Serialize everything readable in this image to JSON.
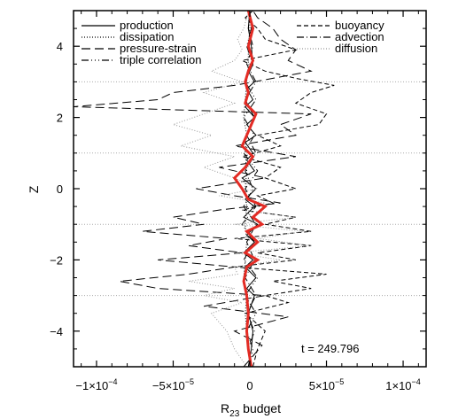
{
  "chart_data": {
    "type": "line",
    "xlabel_main": "R",
    "xlabel_sub": "23",
    "xlabel_rest": " budget",
    "ylabel": "Z",
    "xlim": [
      -0.000115,
      0.000115
    ],
    "ylim": [
      -5,
      5
    ],
    "x_ticks": [
      {
        "value": -0.0001,
        "mant": "−1×10",
        "exp": "−4"
      },
      {
        "value": -5e-05,
        "mant": "−5×10",
        "exp": "−5"
      },
      {
        "value": 0,
        "mant": "0",
        "exp": ""
      },
      {
        "value": 5e-05,
        "mant": "5×10",
        "exp": "−5"
      },
      {
        "value": 0.0001,
        "mant": "1×10",
        "exp": "−4"
      }
    ],
    "y_ticks": [
      {
        "value": -4,
        "label": "−4"
      },
      {
        "value": -2,
        "label": "−2"
      },
      {
        "value": 0,
        "label": "0"
      },
      {
        "value": 2,
        "label": "2"
      },
      {
        "value": 4,
        "label": "4"
      }
    ],
    "annotation": "t = 249.796",
    "grid": "dotted horizontal lines",
    "legend_placement": "top",
    "series": [
      {
        "name": "production",
        "dash": "",
        "color": "#000000",
        "width": 1.0,
        "z": [
          -5,
          -4.5,
          -4,
          -3.5,
          -3,
          -2.8,
          -2.5,
          -2.2,
          -2,
          -1.8,
          -1.5,
          -1.3,
          -1,
          -0.8,
          -0.5,
          -0.3,
          0,
          0.3,
          0.5,
          0.8,
          1,
          1.3,
          1.5,
          1.8,
          2,
          2.3,
          2.5,
          2.8,
          3,
          3.3,
          3.5,
          4,
          4.5,
          5
        ],
        "x": [
          -1e-06,
          1e-06,
          2e-06,
          -1e-06,
          3e-06,
          -2e-06,
          4e-06,
          -3e-06,
          2e-06,
          -4e-06,
          3e-06,
          -2e-06,
          5e-06,
          -4e-06,
          3e-06,
          -3e-06,
          4e-06,
          -5e-06,
          3e-06,
          -2e-06,
          2e-06,
          -3e-06,
          4e-06,
          -2e-06,
          3e-06,
          -3e-06,
          2e-06,
          -2e-06,
          3e-06,
          -1e-06,
          2e-06,
          1e-06,
          -1e-06,
          0
        ]
      },
      {
        "name": "dissipation",
        "dash": "1,2",
        "color": "#000000",
        "width": 1.0,
        "z": [
          -5,
          -4.5,
          -4,
          -3.5,
          -3,
          -2.5,
          -2,
          -1.5,
          -1,
          -0.5,
          0,
          0.5,
          1,
          1.5,
          2,
          2.5,
          3,
          3.5,
          4,
          4.5,
          5
        ],
        "x": [
          0,
          -1e-06,
          -2e-06,
          -3e-06,
          -2e-06,
          -4e-06,
          -3e-06,
          -2e-06,
          -3e-06,
          -2e-06,
          -3e-06,
          -2e-06,
          -3e-06,
          -2e-06,
          -4e-06,
          -3e-06,
          -2e-06,
          -1e-06,
          -1e-06,
          0,
          0
        ]
      },
      {
        "name": "pressure-strain",
        "dash": "10,5",
        "color": "#000000",
        "width": 1.0,
        "z": [
          -5,
          -4.4,
          -4,
          -3.6,
          -3.3,
          -3,
          -2.8,
          -2.6,
          -2.4,
          -2.2,
          -2,
          -1.8,
          -1.6,
          -1.4,
          -1.2,
          -1,
          -0.8,
          -0.6,
          -0.4,
          -0.2,
          0,
          0.3,
          0.6,
          0.9,
          1.2,
          1.5,
          1.8,
          2.1,
          2.3,
          2.5,
          2.7,
          2.9,
          3.1,
          3.3,
          3.6,
          3.9,
          4.2,
          4.5,
          4.8,
          5
        ],
        "x": [
          -4e-06,
          8e-06,
          -1e-05,
          2.5e-05,
          -3e-05,
          1e-05,
          -6e-05,
          -8.5e-05,
          -4e-05,
          -1e-05,
          -6e-05,
          -5e-06,
          -4e-05,
          -1.5e-05,
          -7e-05,
          -3e-05,
          -5e-05,
          -2e-05,
          2e-05,
          -1e-05,
          -3.5e-05,
          1e-05,
          -2e-05,
          3e-05,
          -1e-05,
          3e-05,
          2e-05,
          4e-05,
          -0.000115,
          -6e-05,
          -5e-05,
          -1e-05,
          1.5e-05,
          4e-05,
          2.5e-05,
          3e-05,
          2e-05,
          1.5e-05,
          5e-06,
          2e-06
        ]
      },
      {
        "name": "triple correlation",
        "dash": "8,3,1,3,1,3,1,3",
        "color": "#000000",
        "width": 1.0,
        "z": [
          -5,
          -4.5,
          -4,
          -3.5,
          -3,
          -2.5,
          -2,
          -1.5,
          -1,
          -0.5,
          0,
          0.5,
          1,
          1.5,
          2,
          2.5,
          3,
          3.5,
          4,
          4.5,
          5
        ],
        "x": [
          0,
          2e-06,
          -2e-06,
          4e-06,
          -3e-06,
          5e-06,
          -4e-06,
          3e-06,
          -5e-06,
          4e-06,
          -3e-06,
          5e-06,
          -4e-06,
          3e-06,
          -4e-06,
          4e-06,
          -3e-06,
          2e-06,
          -2e-06,
          1e-06,
          0
        ]
      },
      {
        "name": "buoyancy",
        "dash": "5,3",
        "color": "#000000",
        "width": 1.0,
        "z": [
          -5,
          -4.5,
          -4,
          -3.5,
          -3.2,
          -3,
          -2.8,
          -2.6,
          -2.4,
          -2.2,
          -2,
          -1.8,
          -1.6,
          -1.4,
          -1.2,
          -1,
          -0.8,
          -0.6,
          -0.4,
          -0.2,
          0,
          0.3,
          0.6,
          0.9,
          1.2,
          1.5,
          1.8,
          2.1,
          2.4,
          2.7,
          2.9,
          3.1,
          3.3,
          3.6,
          3.9,
          4.2,
          4.5,
          4.8,
          5
        ],
        "x": [
          2e-06,
          5e-06,
          1e-05,
          -3e-06,
          2.5e-05,
          1e-05,
          4e-05,
          1.5e-05,
          5e-05,
          -1e-05,
          3e-05,
          5e-06,
          4e-05,
          -1e-05,
          4e-05,
          1e-05,
          3e-05,
          -5e-06,
          1.5e-05,
          5e-06,
          3e-05,
          1e-05,
          2e-05,
          -5e-06,
          2e-05,
          5e-06,
          4.5e-05,
          5e-05,
          3e-05,
          4e-05,
          5.5e-05,
          3e-05,
          1e-05,
          -5e-06,
          3e-05,
          1e-05,
          5e-06,
          -3e-06,
          2e-06,
          0
        ]
      },
      {
        "name": "advection",
        "dash": "8,3,1,3",
        "color": "#000000",
        "width": 1.0,
        "z": [
          -5,
          -4.5,
          -4,
          -3.5,
          -3,
          -2.5,
          -2,
          -1.5,
          -1,
          -0.5,
          0,
          0.5,
          1,
          1.5,
          2,
          2.5,
          3,
          3.5,
          4,
          4.5,
          5
        ],
        "x": [
          0,
          -1e-06,
          3e-06,
          -2e-06,
          4e-06,
          -3e-06,
          3e-06,
          -2e-06,
          4e-06,
          -4e-06,
          2e-06,
          -3e-06,
          4e-06,
          -2e-06,
          3e-06,
          -3e-06,
          4e-06,
          -2e-06,
          2e-06,
          -1e-06,
          0
        ]
      },
      {
        "name": "diffusion",
        "dash": "1,2",
        "color": "#999999",
        "width": 1.0,
        "z": [
          -5,
          -4.5,
          -4,
          -3.5,
          -3.2,
          -3,
          -2.8,
          -2.6,
          -2.4,
          -2.2,
          -2,
          -1.8,
          -1.6,
          -1.4,
          -1.2,
          -1,
          -0.8,
          -0.6,
          -0.4,
          -0.2,
          0,
          0.3,
          0.6,
          0.9,
          1.2,
          1.5,
          1.8,
          2.1,
          2.4,
          2.7,
          3,
          3.3,
          3.6,
          3.9,
          4.2,
          4.5,
          4.8,
          5
        ],
        "x": [
          -2e-06,
          -1e-05,
          -1.5e-05,
          -2.5e-05,
          -5e-06,
          -3e-05,
          -1e-05,
          -4e-05,
          -8e-06,
          -1e-05,
          2e-05,
          -1e-05,
          4e-05,
          5e-06,
          3.5e-05,
          -1e-05,
          3e-05,
          -5e-06,
          1e-05,
          -2e-05,
          5e-06,
          -1e-05,
          -3e-05,
          -1e-05,
          -4.5e-05,
          -2.5e-05,
          -5e-05,
          -3e-05,
          -1e-05,
          -3e-05,
          -5e-06,
          -2.5e-05,
          -1e-05,
          -5e-06,
          -8e-06,
          -4e-06,
          -2e-06,
          0
        ]
      },
      {
        "name": "",
        "dash": "",
        "color": "#e32b24",
        "width": 3.0,
        "z": [
          -5,
          -4.5,
          -4,
          -3.5,
          -3,
          -2.6,
          -2.2,
          -2,
          -1.8,
          -1.5,
          -1.2,
          -1,
          -0.8,
          -0.5,
          -0.3,
          0,
          0.3,
          0.6,
          0.9,
          1.2,
          1.5,
          1.8,
          2.1,
          2.4,
          2.7,
          3,
          3.3,
          3.6,
          4,
          4.5,
          5
        ],
        "x": [
          1e-06,
          -1e-06,
          -2e-06,
          -1e-06,
          -2e-06,
          -4e-06,
          -2e-06,
          5e-06,
          -3e-06,
          5e-06,
          -2e-06,
          8e-06,
          2e-06,
          1e-05,
          -1e-06,
          -5e-06,
          -1e-05,
          -3e-06,
          2e-06,
          -5e-06,
          -2e-06,
          1e-06,
          4e-06,
          -3e-06,
          -1e-06,
          -3e-06,
          -1e-06,
          2e-06,
          -1e-06,
          2e-06,
          -1e-06
        ]
      }
    ]
  }
}
